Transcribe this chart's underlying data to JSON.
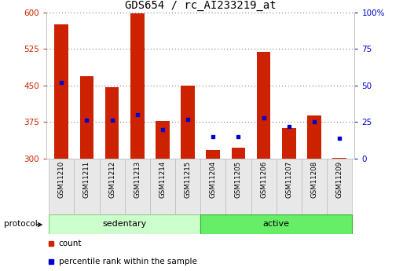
{
  "title": "GDS654 / rc_AI233219_at",
  "samples": [
    "GSM11210",
    "GSM11211",
    "GSM11212",
    "GSM11213",
    "GSM11214",
    "GSM11215",
    "GSM11204",
    "GSM11205",
    "GSM11206",
    "GSM11207",
    "GSM11208",
    "GSM11209"
  ],
  "group_labels": [
    "sedentary",
    "active"
  ],
  "sed_color": "#ccffcc",
  "act_color": "#66ee66",
  "sed_edge": "#88cc88",
  "act_edge": "#33aa33",
  "count_values": [
    575,
    468,
    447,
    597,
    377,
    450,
    318,
    323,
    518,
    362,
    388,
    302
  ],
  "percentile_values": [
    52,
    26,
    26,
    30,
    20,
    27,
    15,
    15,
    28,
    22,
    25,
    14
  ],
  "bar_color": "#cc2200",
  "dot_color": "#0000cc",
  "ymin": 300,
  "ymax": 600,
  "yticks": [
    300,
    375,
    450,
    525,
    600
  ],
  "right_yticks": [
    0,
    25,
    50,
    75,
    100
  ],
  "grid_color": "#555555",
  "title_fontsize": 10,
  "tick_fontsize": 7.5,
  "legend_label_count": "count",
  "legend_label_pct": "percentile rank within the sample",
  "protocol_label": "protocol",
  "left_tick_color": "#cc2200",
  "right_tick_color": "#0000cc",
  "cell_bg": "#e8e8e8",
  "cell_edge": "#bbbbbb"
}
